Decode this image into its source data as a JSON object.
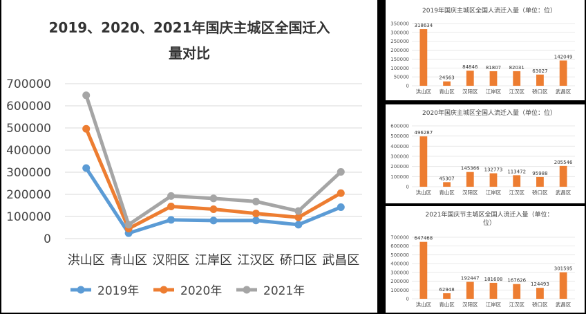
{
  "chart_data": [
    {
      "type": "line",
      "title": "2019、2020、2021年国庆主城区全国迁入量对比",
      "title_line1": "2019、2020、2021年国庆主城区全国迁入",
      "title_line2": "量对比",
      "categories": [
        "洪山区",
        "青山区",
        "汉阳区",
        "江岸区",
        "江汉区",
        "硚口区",
        "武昌区"
      ],
      "series": [
        {
          "name": "2019年",
          "color": "#5b9bd5",
          "values": [
            318634,
            24563,
            84846,
            81807,
            82031,
            63027,
            142049
          ]
        },
        {
          "name": "2020年",
          "color": "#ed7d31",
          "values": [
            496287,
            45307,
            145366,
            132773,
            113472,
            95988,
            205546
          ]
        },
        {
          "name": "2021年",
          "color": "#a5a5a5",
          "values": [
            647468,
            62948,
            192447,
            181608,
            167626,
            124493,
            301595
          ]
        }
      ],
      "ylim": [
        0,
        700000
      ],
      "yticks": [
        "0",
        "100000",
        "200000",
        "300000",
        "400000",
        "500000",
        "600000",
        "700000"
      ],
      "legend": "bottom",
      "grid": true
    },
    {
      "type": "bar",
      "title": "2019年国庆主城区全国人流迁入量（单位：位）",
      "categories": [
        "洪山区",
        "青山区",
        "汉阳区",
        "江岸区",
        "江汉区",
        "硚口区",
        "武昌区"
      ],
      "values": [
        318634,
        24563,
        84846,
        81807,
        82031,
        63027,
        142049
      ],
      "ylim": [
        0,
        350000
      ],
      "yticks": [
        "0",
        "50000",
        "100000",
        "150000",
        "200000",
        "250000",
        "300000",
        "350000"
      ],
      "color": "#ed7d31"
    },
    {
      "type": "bar",
      "title": "2020年国庆主城区全国人流迁入量（单位：位）",
      "categories": [
        "洪山区",
        "青山区",
        "汉阳区",
        "江岸区",
        "江汉区",
        "硚口区",
        "武昌区"
      ],
      "values": [
        496287,
        45307,
        145366,
        132773,
        113472,
        95988,
        205546
      ],
      "ylim": [
        0,
        600000
      ],
      "yticks": [
        "0",
        "100000",
        "200000",
        "300000",
        "400000",
        "500000",
        "600000"
      ],
      "color": "#ed7d31"
    },
    {
      "type": "bar",
      "title": "2021年国庆节主城区全国人流迁入量（单位：位）",
      "title_line1": "2021年国庆节主城区全国人流迁入量（单位：",
      "title_line2": "位）",
      "categories": [
        "洪山区",
        "青山区",
        "汉阳区",
        "江岸区",
        "江汉区",
        "硚口区",
        "武昌区"
      ],
      "values": [
        647468,
        62948,
        192447,
        181608,
        167626,
        124493,
        301595
      ],
      "ylim": [
        0,
        700000
      ],
      "yticks": [
        "0",
        "100000",
        "200000",
        "300000",
        "400000",
        "500000",
        "600000",
        "700000"
      ],
      "color": "#ed7d31"
    }
  ]
}
